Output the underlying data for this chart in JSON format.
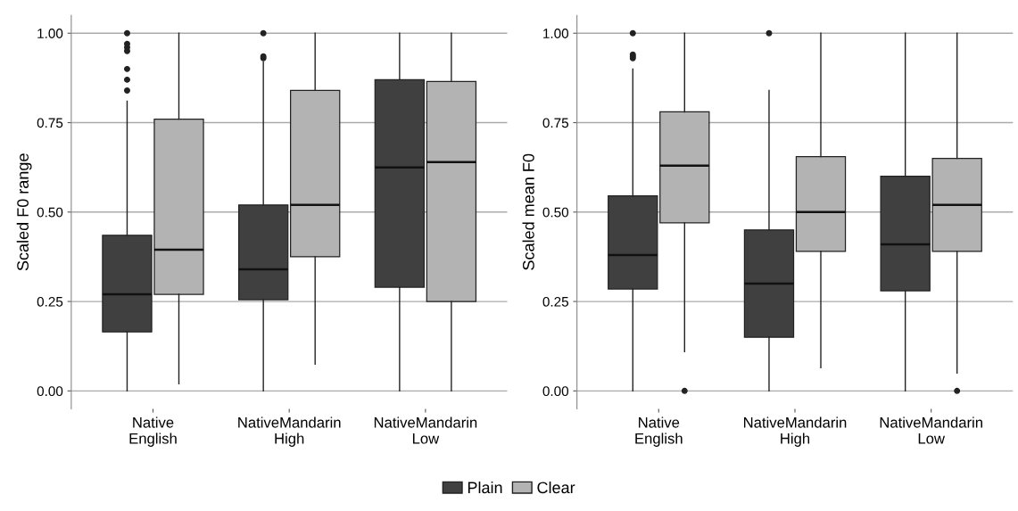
{
  "chart_data": [
    {
      "type": "box",
      "ylabel": "Scaled F0 range",
      "categories": [
        "Native\nEnglish",
        "NativeMandarin\nHigh",
        "NativeMandarin\nLow"
      ],
      "ylim": [
        -0.05,
        1.05
      ],
      "yticks": [
        {
          "value": 0,
          "label": "0.00"
        },
        {
          "value": 0.25,
          "label": "0.25"
        },
        {
          "value": 0.5,
          "label": "0.50"
        },
        {
          "value": 0.75,
          "label": "0.75"
        },
        {
          "value": 1,
          "label": "1.00"
        }
      ],
      "grid": "y",
      "legend": "bottom",
      "series": [
        {
          "name": "Plain",
          "color": "#404040",
          "boxes": [
            {
              "low": 0,
              "q1": 0.165,
              "median": 0.27,
              "q3": 0.435,
              "high": 0.81,
              "outliers": [
                0.84,
                0.87,
                0.9,
                0.95,
                0.96,
                0.97,
                1.0
              ]
            },
            {
              "low": 0,
              "q1": 0.255,
              "median": 0.34,
              "q3": 0.52,
              "high": 0.92,
              "outliers": [
                0.93,
                0.935,
                1.0
              ]
            },
            {
              "low": 0,
              "q1": 0.29,
              "median": 0.625,
              "q3": 0.87,
              "high": 1.0
            }
          ]
        },
        {
          "name": "Clear",
          "color": "#b3b3b3",
          "boxes": [
            {
              "low": 0.02,
              "q1": 0.27,
              "median": 0.395,
              "q3": 0.76,
              "high": 1.0
            },
            {
              "low": 0.075,
              "q1": 0.375,
              "median": 0.52,
              "q3": 0.84,
              "high": 1.0
            },
            {
              "low": 0,
              "q1": 0.25,
              "median": 0.64,
              "q3": 0.865,
              "high": 1.0
            }
          ]
        }
      ]
    },
    {
      "type": "box",
      "ylabel": "Scaled mean F0",
      "categories": [
        "Native\nEnglish",
        "NativeMandarin\nHigh",
        "NativeMandarin\nLow"
      ],
      "ylim": [
        -0.05,
        1.05
      ],
      "yticks": [
        {
          "value": 0,
          "label": "0.00"
        },
        {
          "value": 0.25,
          "label": "0.25"
        },
        {
          "value": 0.5,
          "label": "0.50"
        },
        {
          "value": 0.75,
          "label": "0.75"
        },
        {
          "value": 1,
          "label": "1.00"
        }
      ],
      "grid": "y",
      "legend": "bottom",
      "series": [
        {
          "name": "Plain",
          "color": "#404040",
          "boxes": [
            {
              "low": 0,
              "q1": 0.285,
              "median": 0.38,
              "q3": 0.545,
              "high": 0.9,
              "outliers": [
                0.93,
                0.935,
                0.94,
                1.0
              ]
            },
            {
              "low": 0,
              "q1": 0.15,
              "median": 0.3,
              "q3": 0.45,
              "high": 0.84,
              "outliers": [
                1.0
              ]
            },
            {
              "low": 0,
              "q1": 0.28,
              "median": 0.41,
              "q3": 0.6,
              "high": 1.0
            }
          ]
        },
        {
          "name": "Clear",
          "color": "#b3b3b3",
          "boxes": [
            {
              "low": 0.11,
              "q1": 0.47,
              "median": 0.63,
              "q3": 0.78,
              "high": 1.0,
              "outliers": [
                0.0
              ]
            },
            {
              "low": 0.065,
              "q1": 0.39,
              "median": 0.5,
              "q3": 0.655,
              "high": 1.0
            },
            {
              "low": 0.05,
              "q1": 0.39,
              "median": 0.52,
              "q3": 0.65,
              "high": 1.0,
              "outliers": [
                0.0
              ]
            }
          ]
        }
      ]
    }
  ]
}
